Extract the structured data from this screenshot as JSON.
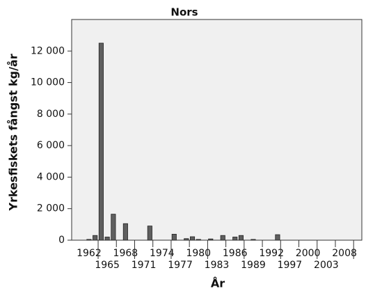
{
  "chart_data": {
    "type": "bar",
    "title": "Nors",
    "x_label": "År",
    "y_label": "Yrkesfiskets fångst kg/år",
    "categories": [
      "1962",
      null,
      null,
      "1965",
      null,
      null,
      "1968",
      null,
      null,
      "1971",
      null,
      null,
      "1974",
      null,
      null,
      "1977",
      null,
      null,
      "1980",
      null,
      null,
      "1983",
      null,
      null,
      "1986",
      null,
      null,
      "1989",
      null,
      null,
      "1992",
      null,
      null,
      "1997",
      null,
      null,
      "2000",
      null,
      null,
      "2003",
      null,
      null,
      "2008"
    ],
    "values": [
      50,
      300,
      12500,
      200,
      1650,
      0,
      1050,
      0,
      0,
      0,
      900,
      0,
      0,
      0,
      380,
      0,
      100,
      220,
      50,
      0,
      80,
      0,
      300,
      0,
      200,
      300,
      0,
      50,
      0,
      0,
      0,
      350,
      0,
      0,
      0,
      0,
      0,
      0,
      0,
      0,
      0,
      0,
      0
    ],
    "color": "#5f5f5f",
    "ylim": [
      0,
      14000
    ],
    "yticks": [
      0,
      {
        "value": 2000,
        "label": "2 000"
      },
      {
        "value": 4000,
        "label": "4 000"
      },
      {
        "value": 6000,
        "label": "6 000"
      },
      {
        "value": 8000,
        "label": "8 000"
      },
      {
        "value": 10000,
        "label": "10 000"
      },
      {
        "value": 12000,
        "label": "12 000"
      }
    ],
    "grid": false
  }
}
